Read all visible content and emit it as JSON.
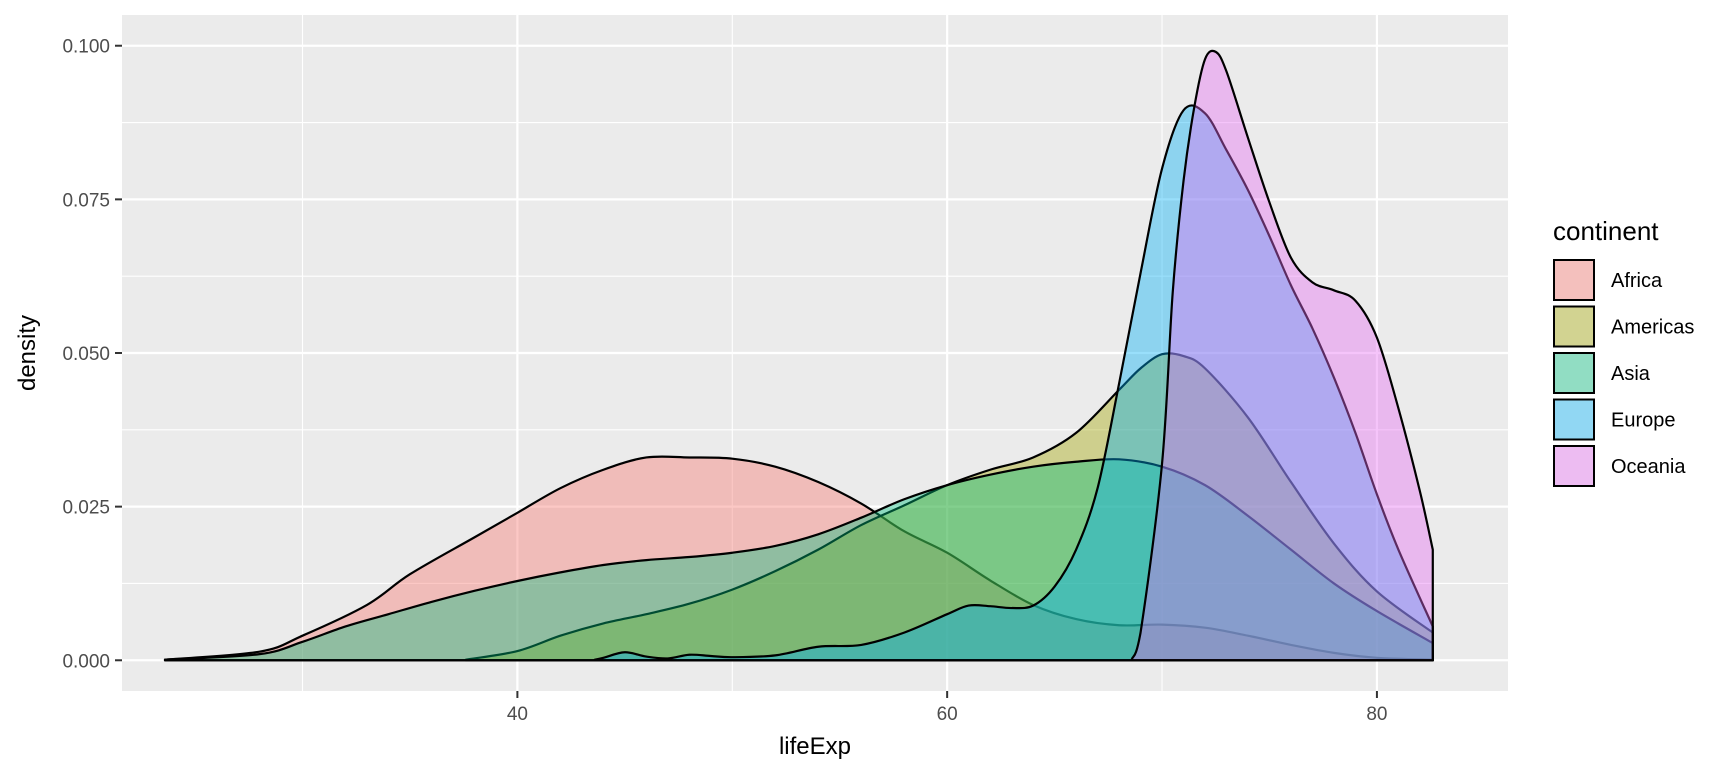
{
  "chart_data": {
    "type": "area",
    "xlabel": "lifeExp",
    "ylabel": "density",
    "xlim": [
      21.6,
      86.1
    ],
    "ylim": [
      -0.005,
      0.105
    ],
    "x_ticks": [
      40,
      60,
      80
    ],
    "x_tick_labels": [
      "40",
      "60",
      "80"
    ],
    "y_ticks": [
      0,
      0.025,
      0.05,
      0.075,
      0.1
    ],
    "y_tick_labels": [
      "0.000",
      "0.025",
      "0.050",
      "0.075",
      "0.100"
    ],
    "grid": true,
    "legend_placement": "right",
    "legend_title": "continent",
    "fill_opacity": 0.4,
    "series": [
      {
        "name": "Africa",
        "color": "#F8766D",
        "points": [
          [
            23.6,
            0.0001
          ],
          [
            28,
            0.0014
          ],
          [
            30,
            0.004
          ],
          [
            33,
            0.009
          ],
          [
            35,
            0.014
          ],
          [
            38,
            0.02
          ],
          [
            40,
            0.024
          ],
          [
            42,
            0.028
          ],
          [
            44,
            0.031
          ],
          [
            46,
            0.033
          ],
          [
            48,
            0.033
          ],
          [
            50,
            0.0328
          ],
          [
            52,
            0.0315
          ],
          [
            54,
            0.029
          ],
          [
            56,
            0.0255
          ],
          [
            58,
            0.021
          ],
          [
            60,
            0.0175
          ],
          [
            62,
            0.013
          ],
          [
            64,
            0.009
          ],
          [
            66,
            0.0067
          ],
          [
            68,
            0.0057
          ],
          [
            70,
            0.0058
          ],
          [
            72,
            0.0053
          ],
          [
            74,
            0.004
          ],
          [
            76,
            0.0025
          ],
          [
            78,
            0.0012
          ],
          [
            80,
            0.0004
          ],
          [
            82.6,
            0.0001
          ]
        ]
      },
      {
        "name": "Americas",
        "color": "#A3A500",
        "points": [
          [
            37.6,
            0.0001
          ],
          [
            40,
            0.0015
          ],
          [
            42,
            0.004
          ],
          [
            44,
            0.006
          ],
          [
            46,
            0.0075
          ],
          [
            48,
            0.0092
          ],
          [
            50,
            0.0115
          ],
          [
            52,
            0.0145
          ],
          [
            54,
            0.018
          ],
          [
            56,
            0.022
          ],
          [
            58,
            0.0252
          ],
          [
            60,
            0.0285
          ],
          [
            62,
            0.031
          ],
          [
            64,
            0.033
          ],
          [
            66,
            0.037
          ],
          [
            68,
            0.044
          ],
          [
            69,
            0.0475
          ],
          [
            70,
            0.0498
          ],
          [
            71,
            0.0495
          ],
          [
            72,
            0.0475
          ],
          [
            74,
            0.0395
          ],
          [
            76,
            0.029
          ],
          [
            78,
            0.019
          ],
          [
            80,
            0.0112
          ],
          [
            82.6,
            0.0045
          ]
        ]
      },
      {
        "name": "Asia",
        "color": "#00BF7D",
        "points": [
          [
            23.6,
            0.0001
          ],
          [
            28,
            0.001
          ],
          [
            30,
            0.003
          ],
          [
            32,
            0.0055
          ],
          [
            34,
            0.0075
          ],
          [
            36,
            0.0095
          ],
          [
            38,
            0.0113
          ],
          [
            40,
            0.0129
          ],
          [
            42,
            0.0143
          ],
          [
            44,
            0.0155
          ],
          [
            46,
            0.0163
          ],
          [
            48,
            0.0168
          ],
          [
            50,
            0.0175
          ],
          [
            52,
            0.0186
          ],
          [
            54,
            0.0205
          ],
          [
            56,
            0.0232
          ],
          [
            58,
            0.0262
          ],
          [
            60,
            0.0285
          ],
          [
            62,
            0.0302
          ],
          [
            64,
            0.0315
          ],
          [
            66,
            0.0323
          ],
          [
            68,
            0.0327
          ],
          [
            70,
            0.0315
          ],
          [
            72,
            0.0285
          ],
          [
            74,
            0.0235
          ],
          [
            76,
            0.018
          ],
          [
            78,
            0.0125
          ],
          [
            80,
            0.008
          ],
          [
            82.6,
            0.0028
          ]
        ]
      },
      {
        "name": "Europe",
        "color": "#00B0F6",
        "points": [
          [
            43.6,
            0.0001
          ],
          [
            44,
            0.0004
          ],
          [
            45,
            0.0013
          ],
          [
            46,
            0.0006
          ],
          [
            47,
            0.0003
          ],
          [
            48,
            0.0009
          ],
          [
            49,
            0.0007
          ],
          [
            50,
            0.0005
          ],
          [
            52,
            0.0008
          ],
          [
            54,
            0.0022
          ],
          [
            56,
            0.0025
          ],
          [
            58,
            0.0045
          ],
          [
            60,
            0.0075
          ],
          [
            61,
            0.0089
          ],
          [
            62,
            0.0088
          ],
          [
            63,
            0.0085
          ],
          [
            64,
            0.0089
          ],
          [
            65,
            0.012
          ],
          [
            66,
            0.018
          ],
          [
            67,
            0.028
          ],
          [
            68,
            0.045
          ],
          [
            69,
            0.063
          ],
          [
            70,
            0.08
          ],
          [
            71,
            0.0895
          ],
          [
            72,
            0.089
          ],
          [
            73,
            0.083
          ],
          [
            74,
            0.0765
          ],
          [
            75,
            0.069
          ],
          [
            76,
            0.061
          ],
          [
            77,
            0.054
          ],
          [
            78,
            0.046
          ],
          [
            79,
            0.037
          ],
          [
            80,
            0.027
          ],
          [
            81,
            0.018
          ],
          [
            82.6,
            0.0055
          ]
        ]
      },
      {
        "name": "Oceania",
        "color": "#E76BF3",
        "points": [
          [
            68.6,
            0.0002
          ],
          [
            69,
            0.0045
          ],
          [
            70,
            0.032
          ],
          [
            70.5,
            0.06
          ],
          [
            71,
            0.078
          ],
          [
            71.5,
            0.09
          ],
          [
            72,
            0.0978
          ],
          [
            72.5,
            0.099
          ],
          [
            73,
            0.0958
          ],
          [
            74,
            0.085
          ],
          [
            75,
            0.0745
          ],
          [
            76,
            0.0655
          ],
          [
            77,
            0.0615
          ],
          [
            78,
            0.0602
          ],
          [
            79,
            0.0585
          ],
          [
            80,
            0.0525
          ],
          [
            81,
            0.041
          ],
          [
            82,
            0.0275
          ],
          [
            82.6,
            0.018
          ]
        ]
      }
    ]
  }
}
